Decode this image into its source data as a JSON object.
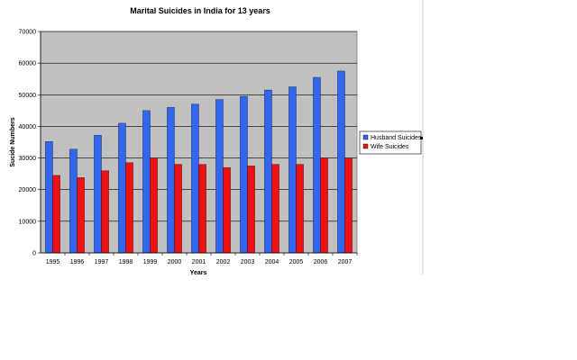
{
  "chart_data": {
    "type": "bar",
    "title": "Marital Suicides in India for 13 years",
    "xlabel": "Years",
    "ylabel": "Sucide Numbers",
    "categories": [
      "1995",
      "1996",
      "1997",
      "1998",
      "1999",
      "2000",
      "2001",
      "2002",
      "2003",
      "2004",
      "2005",
      "2006",
      "2007"
    ],
    "series": [
      {
        "name": "Husband Suicides",
        "color": "#3366ee",
        "values": [
          35200,
          32800,
          37200,
          41000,
          45000,
          46000,
          47000,
          48500,
          49500,
          51500,
          52500,
          55500,
          57500
        ]
      },
      {
        "name": "Wife Suicides",
        "color": "#ee1111",
        "values": [
          24500,
          23800,
          26000,
          28500,
          30000,
          28000,
          28000,
          27000,
          27500,
          28000,
          28000,
          30000,
          30000
        ]
      }
    ],
    "ylim": [
      0,
      70000
    ],
    "yticks": [
      0,
      10000,
      20000,
      30000,
      40000,
      50000,
      60000,
      70000
    ],
    "grid": true,
    "plot_background": "#c0c0c0",
    "legend_position": "right"
  }
}
